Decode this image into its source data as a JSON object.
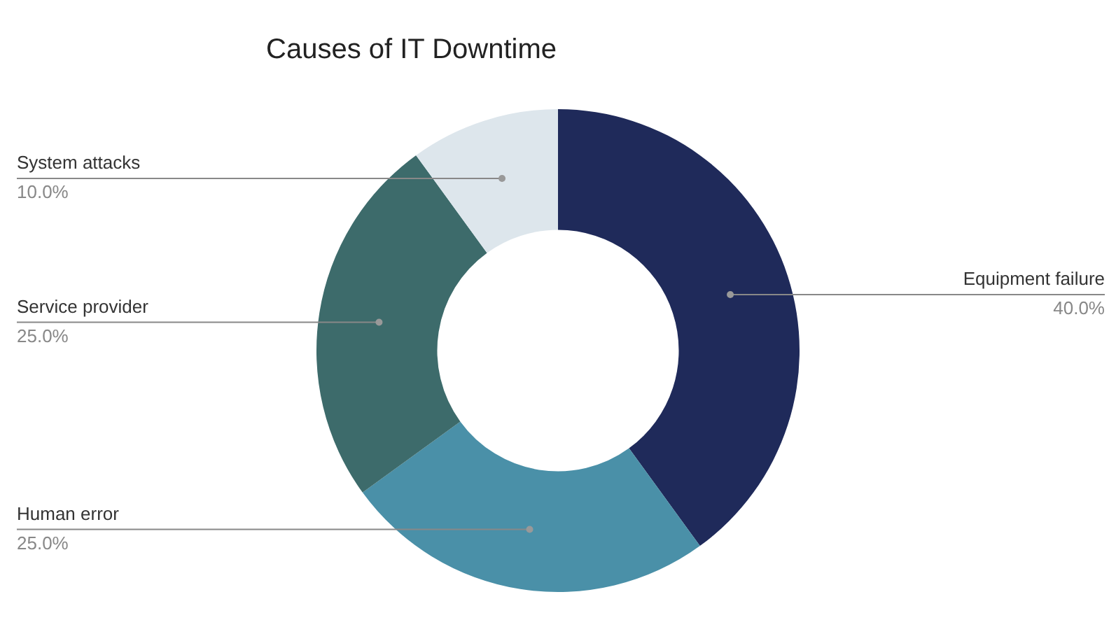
{
  "chart_data": {
    "type": "donut",
    "title": "Causes of IT Downtime",
    "categories": [
      "Equipment failure",
      "Human error",
      "Service provider",
      "System attacks"
    ],
    "values": [
      40,
      25,
      25,
      10
    ],
    "colors": [
      "#1f2a5a",
      "#4a90a8",
      "#3d6b6b",
      "#dde6ec"
    ],
    "value_labels": [
      "40.0%",
      "25.0%",
      "25.0%",
      "10.0%"
    ],
    "legend": false
  }
}
